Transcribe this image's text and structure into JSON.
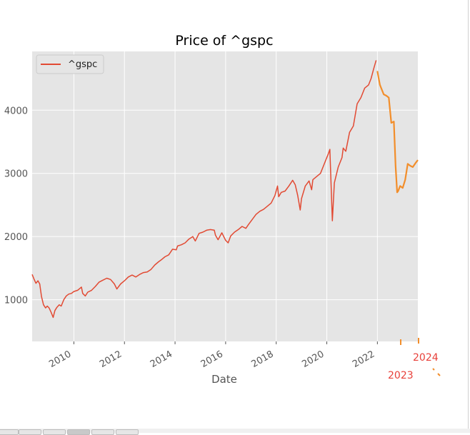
{
  "chart_data": {
    "type": "line",
    "title": "Price of ^gspc",
    "xlabel": "Date",
    "ylabel": "",
    "legend": {
      "entries": [
        "^gspc"
      ],
      "placement": "top-left"
    },
    "grid": true,
    "xlim": [
      2008.35,
      2023.6
    ],
    "ylim": [
      340,
      4930
    ],
    "xticks": [
      2010,
      2012,
      2014,
      2016,
      2018,
      2020,
      2022
    ],
    "xtick_labels": [
      "2010",
      "2012",
      "2014",
      "2016",
      "2018",
      "2020",
      "2022"
    ],
    "yticks": [
      1000,
      2000,
      3000,
      4000
    ],
    "ytick_labels": [
      "1000",
      "2000",
      "3000",
      "4000"
    ],
    "series": [
      {
        "name": "^gspc",
        "color": "#e24a33",
        "x": [
          2008.35,
          2008.42,
          2008.5,
          2008.58,
          2008.65,
          2008.72,
          2008.8,
          2008.88,
          2008.95,
          2009.02,
          2009.1,
          2009.18,
          2009.25,
          2009.33,
          2009.42,
          2009.5,
          2009.6,
          2009.7,
          2009.8,
          2009.9,
          2010.0,
          2010.15,
          2010.3,
          2010.35,
          2010.45,
          2010.55,
          2010.7,
          2010.85,
          2011.0,
          2011.15,
          2011.3,
          2011.45,
          2011.6,
          2011.7,
          2011.85,
          2012.0,
          2012.15,
          2012.3,
          2012.45,
          2012.6,
          2012.75,
          2012.9,
          2013.05,
          2013.2,
          2013.35,
          2013.45,
          2013.6,
          2013.75,
          2013.9,
          2014.05,
          2014.1,
          2014.25,
          2014.4,
          2014.55,
          2014.7,
          2014.8,
          2014.95,
          2015.1,
          2015.25,
          2015.4,
          2015.55,
          2015.6,
          2015.7,
          2015.85,
          2016.0,
          2016.1,
          2016.2,
          2016.35,
          2016.5,
          2016.65,
          2016.8,
          2016.9,
          2017.05,
          2017.2,
          2017.35,
          2017.5,
          2017.65,
          2017.8,
          2017.95,
          2018.05,
          2018.1,
          2018.2,
          2018.35,
          2018.5,
          2018.65,
          2018.75,
          2018.85,
          2018.95,
          2019.0,
          2019.15,
          2019.3,
          2019.4,
          2019.45,
          2019.6,
          2019.75,
          2019.9,
          2020.05,
          2020.12,
          2020.18,
          2020.22,
          2020.3,
          2020.45,
          2020.6,
          2020.65,
          2020.75,
          2020.9,
          2021.05,
          2021.2,
          2021.35,
          2021.5,
          2021.65,
          2021.75,
          2021.85,
          2021.95
        ],
        "y": [
          1400,
          1330,
          1260,
          1300,
          1250,
          1050,
          920,
          870,
          900,
          870,
          800,
          720,
          830,
          880,
          920,
          900,
          1000,
          1060,
          1090,
          1100,
          1130,
          1150,
          1200,
          1100,
          1060,
          1120,
          1150,
          1210,
          1280,
          1310,
          1340,
          1320,
          1250,
          1170,
          1250,
          1300,
          1360,
          1390,
          1360,
          1400,
          1430,
          1440,
          1480,
          1550,
          1600,
          1630,
          1680,
          1710,
          1800,
          1790,
          1850,
          1870,
          1900,
          1960,
          2000,
          1930,
          2050,
          2070,
          2100,
          2110,
          2100,
          2020,
          1950,
          2060,
          1940,
          1900,
          2010,
          2070,
          2110,
          2160,
          2130,
          2190,
          2270,
          2350,
          2400,
          2430,
          2480,
          2530,
          2650,
          2800,
          2630,
          2700,
          2720,
          2800,
          2890,
          2820,
          2650,
          2420,
          2600,
          2800,
          2880,
          2740,
          2900,
          2950,
          3000,
          3150,
          3300,
          3380,
          2700,
          2250,
          2850,
          3100,
          3250,
          3400,
          3350,
          3650,
          3750,
          4100,
          4200,
          4350,
          4400,
          4500,
          4650,
          4790
        ]
      },
      {
        "name": "",
        "color": "#f28e2b",
        "x": [
          2022.0,
          2022.1,
          2022.25,
          2022.35,
          2022.45,
          2022.55,
          2022.65,
          2022.72,
          2022.78,
          2022.82,
          2022.9,
          2023.0,
          2023.1,
          2023.2,
          2023.3,
          2023.4,
          2023.5,
          2023.6
        ],
        "y": [
          4620,
          4400,
          4250,
          4230,
          4200,
          3800,
          3820,
          3120,
          2700,
          2720,
          2800,
          2770,
          2900,
          3150,
          3120,
          3100,
          3160,
          3210
        ]
      }
    ],
    "annotations": [
      {
        "text": "2023",
        "color": "#e8403a"
      },
      {
        "text": "2024",
        "color": "#e8403a"
      }
    ]
  }
}
